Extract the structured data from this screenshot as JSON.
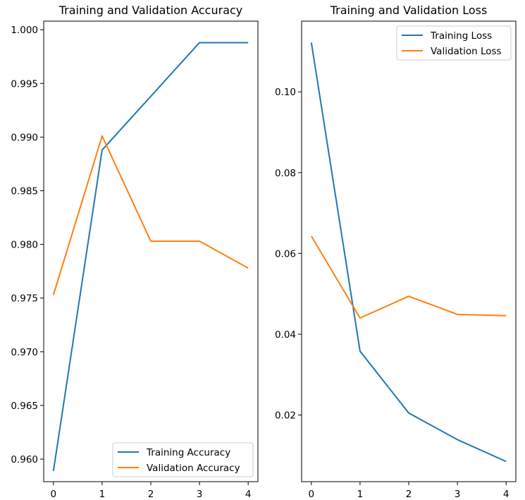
{
  "chart_data": [
    {
      "type": "line",
      "title": "Training and Validation Accuracy",
      "xlabel": "",
      "ylabel": "",
      "x": [
        0,
        1,
        2,
        3,
        4
      ],
      "xticks": [
        "0",
        "1",
        "2",
        "3",
        "4"
      ],
      "xlim": [
        -0.2,
        4.2
      ],
      "yticks": [
        "0.960",
        "0.965",
        "0.970",
        "0.975",
        "0.980",
        "0.985",
        "0.990",
        "0.995",
        "1.000"
      ],
      "ylim": [
        0.9579,
        1.0008
      ],
      "grid": false,
      "legend_position": "lower right",
      "series": [
        {
          "name": "Training Accuracy",
          "color": "#1f77b4",
          "values": [
            0.9589,
            0.9888,
            0.9938,
            0.9988,
            0.9988
          ]
        },
        {
          "name": "Validation Accuracy",
          "color": "#ff7f0e",
          "values": [
            0.9753,
            0.9901,
            0.9803,
            0.9803,
            0.9778
          ]
        }
      ]
    },
    {
      "type": "line",
      "title": "Training and Validation Loss",
      "xlabel": "",
      "ylabel": "",
      "x": [
        0,
        1,
        2,
        3,
        4
      ],
      "xticks": [
        "0",
        "1",
        "2",
        "3",
        "4"
      ],
      "xlim": [
        -0.2,
        4.2
      ],
      "yticks": [
        "0.02",
        "0.04",
        "0.06",
        "0.08",
        "0.10"
      ],
      "ylim": [
        0.0035,
        0.1175
      ],
      "grid": false,
      "legend_position": "upper right",
      "series": [
        {
          "name": "Training Loss",
          "color": "#1f77b4",
          "values": [
            0.1122,
            0.0358,
            0.0205,
            0.0139,
            0.0085
          ]
        },
        {
          "name": "Validation Loss",
          "color": "#ff7f0e",
          "values": [
            0.0643,
            0.044,
            0.0494,
            0.0449,
            0.0446
          ]
        }
      ]
    }
  ]
}
